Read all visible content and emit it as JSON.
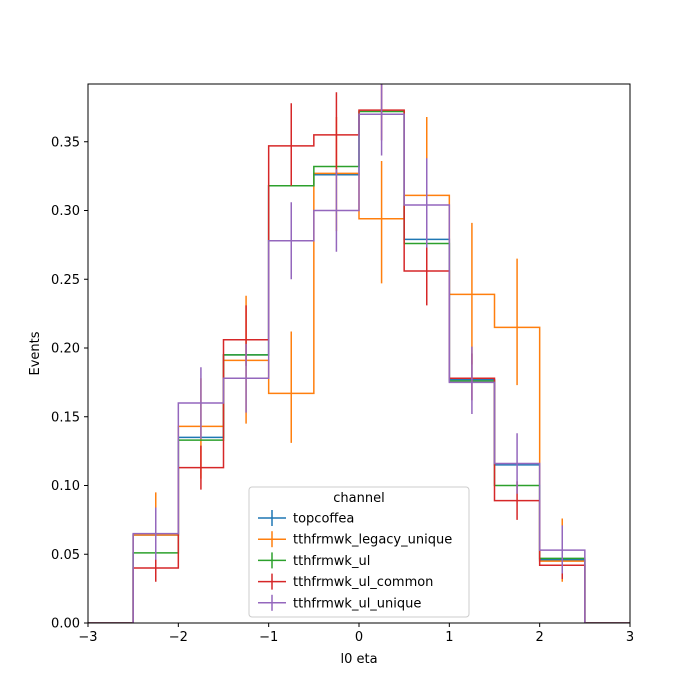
{
  "chart_data": {
    "type": "line",
    "drawstyle": "step-histogram",
    "xlabel": "l0 eta",
    "ylabel": "Events",
    "xlim": [
      -3,
      3
    ],
    "ylim": [
      0,
      0.392
    ],
    "xticks": [
      -3,
      -2,
      -1,
      0,
      1,
      2,
      3
    ],
    "xtick_labels": [
      "−3",
      "−2",
      "−1",
      "0",
      "1",
      "2",
      "3"
    ],
    "yticks": [
      0.0,
      0.05,
      0.1,
      0.15,
      0.2,
      0.25,
      0.3,
      0.35
    ],
    "ytick_labels": [
      "0.00",
      "0.05",
      "0.10",
      "0.15",
      "0.20",
      "0.25",
      "0.30",
      "0.35"
    ],
    "grid": false,
    "legend": {
      "title": "channel",
      "placement": "bottom-center"
    },
    "bin_edges": [
      -3,
      -2.5,
      -2,
      -1.5,
      -1,
      -0.5,
      0,
      0.5,
      1,
      1.5,
      2,
      2.5,
      3
    ],
    "series": [
      {
        "name": "topcoffea",
        "color": "#1f77b4",
        "values": [
          0,
          0.064,
          0.135,
          0.195,
          0.318,
          0.326,
          0.37,
          0.279,
          0.177,
          0.115,
          0.046,
          0
        ],
        "err_low": [
          0,
          0.064,
          0.135,
          0.195,
          0.318,
          0.326,
          0.37,
          0.279,
          0.177,
          0.115,
          0.046,
          0
        ],
        "err_high": [
          0,
          0.064,
          0.135,
          0.195,
          0.318,
          0.326,
          0.37,
          0.279,
          0.177,
          0.115,
          0.046,
          0
        ]
      },
      {
        "name": "tthfrmwk_legacy_unique",
        "color": "#ff7f0e",
        "values": [
          0,
          0.064,
          0.143,
          0.191,
          0.167,
          0.327,
          0.294,
          0.311,
          0.239,
          0.215,
          0.045,
          0
        ],
        "err_low": [
          0,
          0.033,
          0.105,
          0.145,
          0.131,
          0.285,
          0.247,
          0.265,
          0.188,
          0.173,
          0.03,
          0
        ],
        "err_high": [
          0,
          0.095,
          0.178,
          0.238,
          0.212,
          0.368,
          0.336,
          0.368,
          0.291,
          0.265,
          0.076,
          0
        ]
      },
      {
        "name": "tthfrmwk_ul",
        "color": "#2ca02c",
        "values": [
          0,
          0.051,
          0.133,
          0.195,
          0.318,
          0.332,
          0.372,
          0.276,
          0.176,
          0.1,
          0.047,
          0
        ],
        "err_low": [
          0,
          0.051,
          0.133,
          0.195,
          0.318,
          0.332,
          0.372,
          0.276,
          0.176,
          0.1,
          0.047,
          0
        ],
        "err_high": [
          0,
          0.051,
          0.133,
          0.195,
          0.318,
          0.332,
          0.372,
          0.276,
          0.176,
          0.1,
          0.047,
          0
        ]
      },
      {
        "name": "tthfrmwk_ul_common",
        "color": "#d62728",
        "values": [
          0,
          0.04,
          0.113,
          0.206,
          0.347,
          0.355,
          0.373,
          0.256,
          0.178,
          0.089,
          0.042,
          0
        ],
        "err_low": [
          0,
          0.03,
          0.097,
          0.187,
          0.318,
          0.326,
          0.351,
          0.231,
          0.162,
          0.075,
          0.032,
          0
        ],
        "err_high": [
          0,
          0.05,
          0.129,
          0.231,
          0.378,
          0.386,
          0.395,
          0.279,
          0.196,
          0.103,
          0.052,
          0
        ]
      },
      {
        "name": "tthfrmwk_ul_unique",
        "color": "#9467bd",
        "values": [
          0,
          0.065,
          0.16,
          0.178,
          0.278,
          0.3,
          0.37,
          0.304,
          0.175,
          0.116,
          0.053,
          0
        ],
        "err_low": [
          0,
          0.046,
          0.134,
          0.153,
          0.25,
          0.27,
          0.34,
          0.273,
          0.152,
          0.094,
          0.036,
          0
        ],
        "err_high": [
          0,
          0.084,
          0.186,
          0.203,
          0.306,
          0.33,
          0.4,
          0.338,
          0.201,
          0.138,
          0.071,
          0
        ]
      }
    ]
  }
}
